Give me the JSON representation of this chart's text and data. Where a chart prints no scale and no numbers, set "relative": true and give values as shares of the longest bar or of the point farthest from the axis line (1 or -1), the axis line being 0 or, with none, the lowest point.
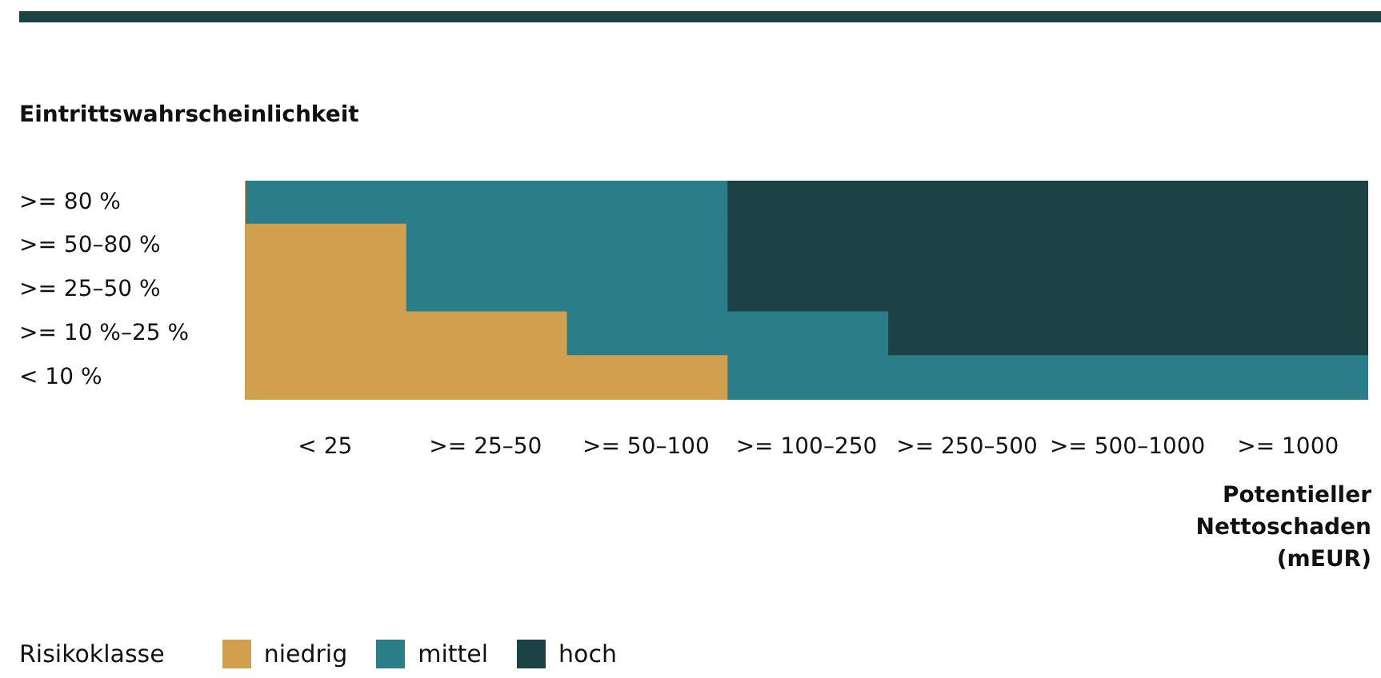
{
  "chart_data": {
    "type": "bar",
    "orientation": "horizontal",
    "stacked": true,
    "relative": true,
    "ylabel": "Eintrittswahrscheinlichkeit",
    "xlabel": "Potentieller Nettoschaden (mEUR)",
    "legend_title": "Risikoklasse",
    "legend": "bottom left",
    "categories": [
      ">= 80 %",
      ">= 50–80 %",
      ">= 25–50 %",
      ">= 10 %–25 %",
      "< 10 %"
    ],
    "annotations": [
      "< 25",
      ">= 25–50",
      ">= 50–100",
      ">= 100–250",
      ">= 250–500",
      ">= 500–1000",
      ">= 1000"
    ],
    "series": [
      {
        "name": "niedrig",
        "color": "#d1a04f",
        "values": [
          0,
          0.143,
          0.143,
          0.286,
          0.429
        ]
      },
      {
        "name": "mittel",
        "color": "#2b7d89",
        "values": [
          0.429,
          0.286,
          0.286,
          0.286,
          0.571
        ]
      },
      {
        "name": "hoch",
        "color": "#1c4246",
        "values": [
          0.571,
          0.571,
          0.571,
          0.428,
          0
        ]
      }
    ]
  }
}
